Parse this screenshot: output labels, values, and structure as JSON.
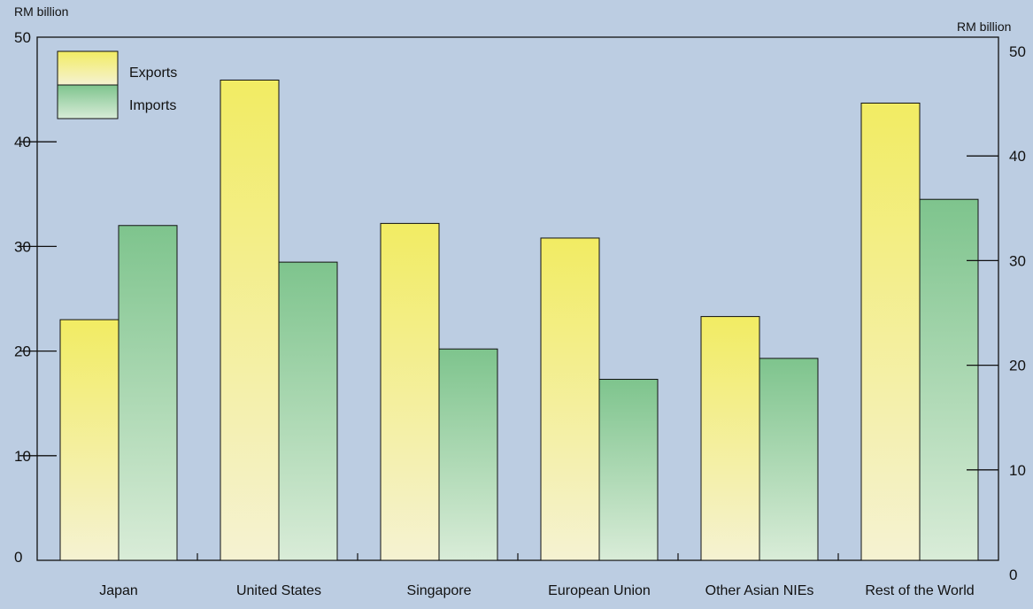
{
  "chart_data": {
    "type": "bar",
    "categories": [
      "Japan",
      "United States",
      "Singapore",
      "European Union",
      "Other Asian NIEs",
      "Rest of the World"
    ],
    "series": [
      {
        "name": "Exports",
        "values": [
          23.0,
          45.9,
          32.2,
          30.8,
          23.3,
          43.7
        ]
      },
      {
        "name": "Imports",
        "values": [
          32.0,
          28.5,
          20.2,
          17.3,
          19.3,
          34.5
        ]
      }
    ],
    "ylabel_left": "RM billion",
    "ylabel_right": "RM billion",
    "ylim": [
      0,
      50
    ],
    "left_ticks": [
      0,
      10,
      20,
      30,
      40,
      50
    ],
    "right_ticks": [
      0,
      10,
      20,
      30,
      40,
      50
    ],
    "legend_position": "top-left",
    "grid": false
  },
  "colors": {
    "background": "#bccde2",
    "plot_background": "#bccde2",
    "exports_top": "#f2ec63",
    "exports_bottom": "#f5f2d2",
    "imports_top": "#7ec48d",
    "imports_bottom": "#d9ecd8",
    "axis": "#111111"
  }
}
